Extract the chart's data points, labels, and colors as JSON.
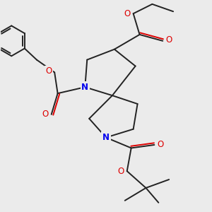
{
  "bg_color": "#ebebeb",
  "bond_color": "#222222",
  "N_color": "#0000ee",
  "O_color": "#dd0000",
  "lw": 1.4,
  "figsize": [
    3.0,
    3.0
  ],
  "dpi": 100,
  "xlim": [
    -1.0,
    9.0
  ],
  "ylim": [
    -1.0,
    9.0
  ]
}
